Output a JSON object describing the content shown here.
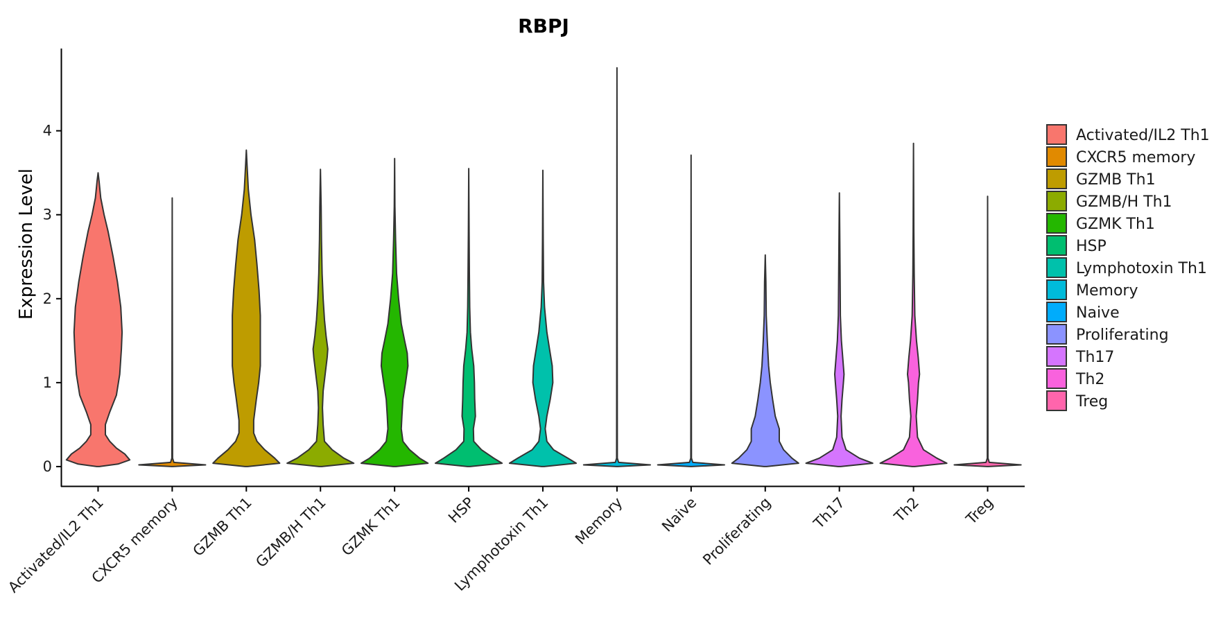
{
  "chart_data": {
    "type": "violin",
    "title": "RBPJ",
    "xlabel": "",
    "ylabel": "Expression Level",
    "ylim": [
      -0.24,
      4.98
    ],
    "yticks": [
      0,
      1,
      2,
      3,
      4
    ],
    "ytick_labels": [
      "0",
      "1",
      "2",
      "3",
      "4"
    ],
    "grid": false,
    "legend_position": "right",
    "categories": [
      "Activated/IL2 Th1",
      "CXCR5 memory",
      "GZMB Th1",
      "GZMB/H Th1",
      "GZMK Th1",
      "HSP",
      "Lymphotoxin Th1",
      "Memory",
      "Naive",
      "Proliferating",
      "Th17",
      "Th2",
      "Treg"
    ],
    "colors": [
      "#F8766D",
      "#E18A00",
      "#BE9C00",
      "#8CAB00",
      "#24B700",
      "#00BE70",
      "#00C1AB",
      "#00BBDA",
      "#00ACFC",
      "#8B93FF",
      "#D575FE",
      "#F962DD",
      "#FF65AC"
    ],
    "max_values": [
      3.5,
      3.2,
      3.77,
      3.54,
      3.67,
      3.55,
      3.53,
      4.75,
      3.71,
      2.52,
      3.26,
      3.85,
      3.22
    ],
    "density_profiles": [
      [
        [
          0,
          0.04
        ],
        [
          0.03,
          0.6
        ],
        [
          0.08,
          0.95
        ],
        [
          0.15,
          0.8
        ],
        [
          0.22,
          0.55
        ],
        [
          0.3,
          0.35
        ],
        [
          0.38,
          0.22
        ],
        [
          0.5,
          0.22
        ],
        [
          0.65,
          0.35
        ],
        [
          0.85,
          0.55
        ],
        [
          1.1,
          0.65
        ],
        [
          1.4,
          0.7
        ],
        [
          1.6,
          0.72
        ],
        [
          1.9,
          0.68
        ],
        [
          2.2,
          0.58
        ],
        [
          2.5,
          0.45
        ],
        [
          2.8,
          0.3
        ],
        [
          3.0,
          0.18
        ],
        [
          3.2,
          0.08
        ],
        [
          3.4,
          0.03
        ],
        [
          3.5,
          0.0
        ]
      ],
      [
        [
          0,
          0.02
        ],
        [
          0.02,
          1.0
        ],
        [
          0.05,
          0.05
        ],
        [
          0.1,
          0.01
        ],
        [
          3.2,
          0.0
        ]
      ],
      [
        [
          0,
          0.04
        ],
        [
          0.04,
          1.0
        ],
        [
          0.1,
          0.85
        ],
        [
          0.2,
          0.55
        ],
        [
          0.3,
          0.32
        ],
        [
          0.4,
          0.22
        ],
        [
          0.55,
          0.22
        ],
        [
          0.8,
          0.3
        ],
        [
          1.0,
          0.37
        ],
        [
          1.2,
          0.42
        ],
        [
          1.5,
          0.42
        ],
        [
          1.8,
          0.42
        ],
        [
          2.1,
          0.38
        ],
        [
          2.4,
          0.32
        ],
        [
          2.7,
          0.25
        ],
        [
          3.0,
          0.14
        ],
        [
          3.3,
          0.06
        ],
        [
          3.6,
          0.02
        ],
        [
          3.77,
          0.0
        ]
      ],
      [
        [
          0,
          0.04
        ],
        [
          0.04,
          1.0
        ],
        [
          0.1,
          0.7
        ],
        [
          0.2,
          0.35
        ],
        [
          0.3,
          0.12
        ],
        [
          0.5,
          0.08
        ],
        [
          0.7,
          0.06
        ],
        [
          0.9,
          0.08
        ],
        [
          1.1,
          0.14
        ],
        [
          1.3,
          0.2
        ],
        [
          1.4,
          0.22
        ],
        [
          1.55,
          0.17
        ],
        [
          1.75,
          0.12
        ],
        [
          2.0,
          0.08
        ],
        [
          2.3,
          0.05
        ],
        [
          2.7,
          0.03
        ],
        [
          3.1,
          0.02
        ],
        [
          3.54,
          0.0
        ]
      ],
      [
        [
          0,
          0.04
        ],
        [
          0.04,
          1.0
        ],
        [
          0.1,
          0.75
        ],
        [
          0.2,
          0.45
        ],
        [
          0.3,
          0.25
        ],
        [
          0.45,
          0.2
        ],
        [
          0.6,
          0.22
        ],
        [
          0.8,
          0.25
        ],
        [
          1.0,
          0.33
        ],
        [
          1.2,
          0.4
        ],
        [
          1.35,
          0.38
        ],
        [
          1.5,
          0.3
        ],
        [
          1.7,
          0.2
        ],
        [
          2.0,
          0.12
        ],
        [
          2.3,
          0.06
        ],
        [
          2.7,
          0.03
        ],
        [
          3.1,
          0.01
        ],
        [
          3.67,
          0.0
        ]
      ],
      [
        [
          0,
          0.04
        ],
        [
          0.04,
          1.0
        ],
        [
          0.1,
          0.75
        ],
        [
          0.2,
          0.38
        ],
        [
          0.3,
          0.15
        ],
        [
          0.45,
          0.14
        ],
        [
          0.6,
          0.2
        ],
        [
          0.8,
          0.18
        ],
        [
          1.0,
          0.17
        ],
        [
          1.2,
          0.15
        ],
        [
          1.4,
          0.09
        ],
        [
          1.6,
          0.05
        ],
        [
          1.9,
          0.03
        ],
        [
          2.3,
          0.02
        ],
        [
          2.8,
          0.01
        ],
        [
          3.55,
          0.0
        ]
      ],
      [
        [
          0,
          0.04
        ],
        [
          0.04,
          1.0
        ],
        [
          0.1,
          0.75
        ],
        [
          0.2,
          0.32
        ],
        [
          0.3,
          0.12
        ],
        [
          0.45,
          0.07
        ],
        [
          0.6,
          0.12
        ],
        [
          0.8,
          0.22
        ],
        [
          1.0,
          0.3
        ],
        [
          1.2,
          0.28
        ],
        [
          1.4,
          0.2
        ],
        [
          1.6,
          0.12
        ],
        [
          1.9,
          0.05
        ],
        [
          2.2,
          0.02
        ],
        [
          2.7,
          0.01
        ],
        [
          3.53,
          0.0
        ]
      ],
      [
        [
          0,
          0.02
        ],
        [
          0.02,
          1.0
        ],
        [
          0.05,
          0.05
        ],
        [
          0.1,
          0.01
        ],
        [
          4.75,
          0.0
        ]
      ],
      [
        [
          0,
          0.02
        ],
        [
          0.02,
          1.0
        ],
        [
          0.05,
          0.05
        ],
        [
          0.1,
          0.01
        ],
        [
          3.71,
          0.0
        ]
      ],
      [
        [
          0,
          0.04
        ],
        [
          0.04,
          1.0
        ],
        [
          0.1,
          0.8
        ],
        [
          0.2,
          0.55
        ],
        [
          0.3,
          0.42
        ],
        [
          0.45,
          0.42
        ],
        [
          0.6,
          0.3
        ],
        [
          0.8,
          0.22
        ],
        [
          1.0,
          0.15
        ],
        [
          1.2,
          0.1
        ],
        [
          1.5,
          0.06
        ],
        [
          1.8,
          0.03
        ],
        [
          2.2,
          0.02
        ],
        [
          2.52,
          0.0
        ]
      ],
      [
        [
          0,
          0.04
        ],
        [
          0.04,
          1.0
        ],
        [
          0.1,
          0.6
        ],
        [
          0.2,
          0.2
        ],
        [
          0.35,
          0.08
        ],
        [
          0.6,
          0.05
        ],
        [
          0.8,
          0.08
        ],
        [
          1.0,
          0.12
        ],
        [
          1.1,
          0.14
        ],
        [
          1.3,
          0.1
        ],
        [
          1.5,
          0.06
        ],
        [
          1.8,
          0.03
        ],
        [
          2.3,
          0.02
        ],
        [
          2.8,
          0.01
        ],
        [
          3.26,
          0.0
        ]
      ],
      [
        [
          0,
          0.04
        ],
        [
          0.04,
          1.0
        ],
        [
          0.1,
          0.7
        ],
        [
          0.2,
          0.3
        ],
        [
          0.35,
          0.12
        ],
        [
          0.6,
          0.08
        ],
        [
          0.8,
          0.12
        ],
        [
          1.0,
          0.15
        ],
        [
          1.1,
          0.18
        ],
        [
          1.3,
          0.14
        ],
        [
          1.5,
          0.09
        ],
        [
          1.8,
          0.04
        ],
        [
          2.3,
          0.02
        ],
        [
          2.8,
          0.01
        ],
        [
          3.85,
          0.0
        ]
      ],
      [
        [
          0,
          0.02
        ],
        [
          0.02,
          1.0
        ],
        [
          0.05,
          0.05
        ],
        [
          0.1,
          0.01
        ],
        [
          3.22,
          0.0
        ]
      ]
    ]
  }
}
